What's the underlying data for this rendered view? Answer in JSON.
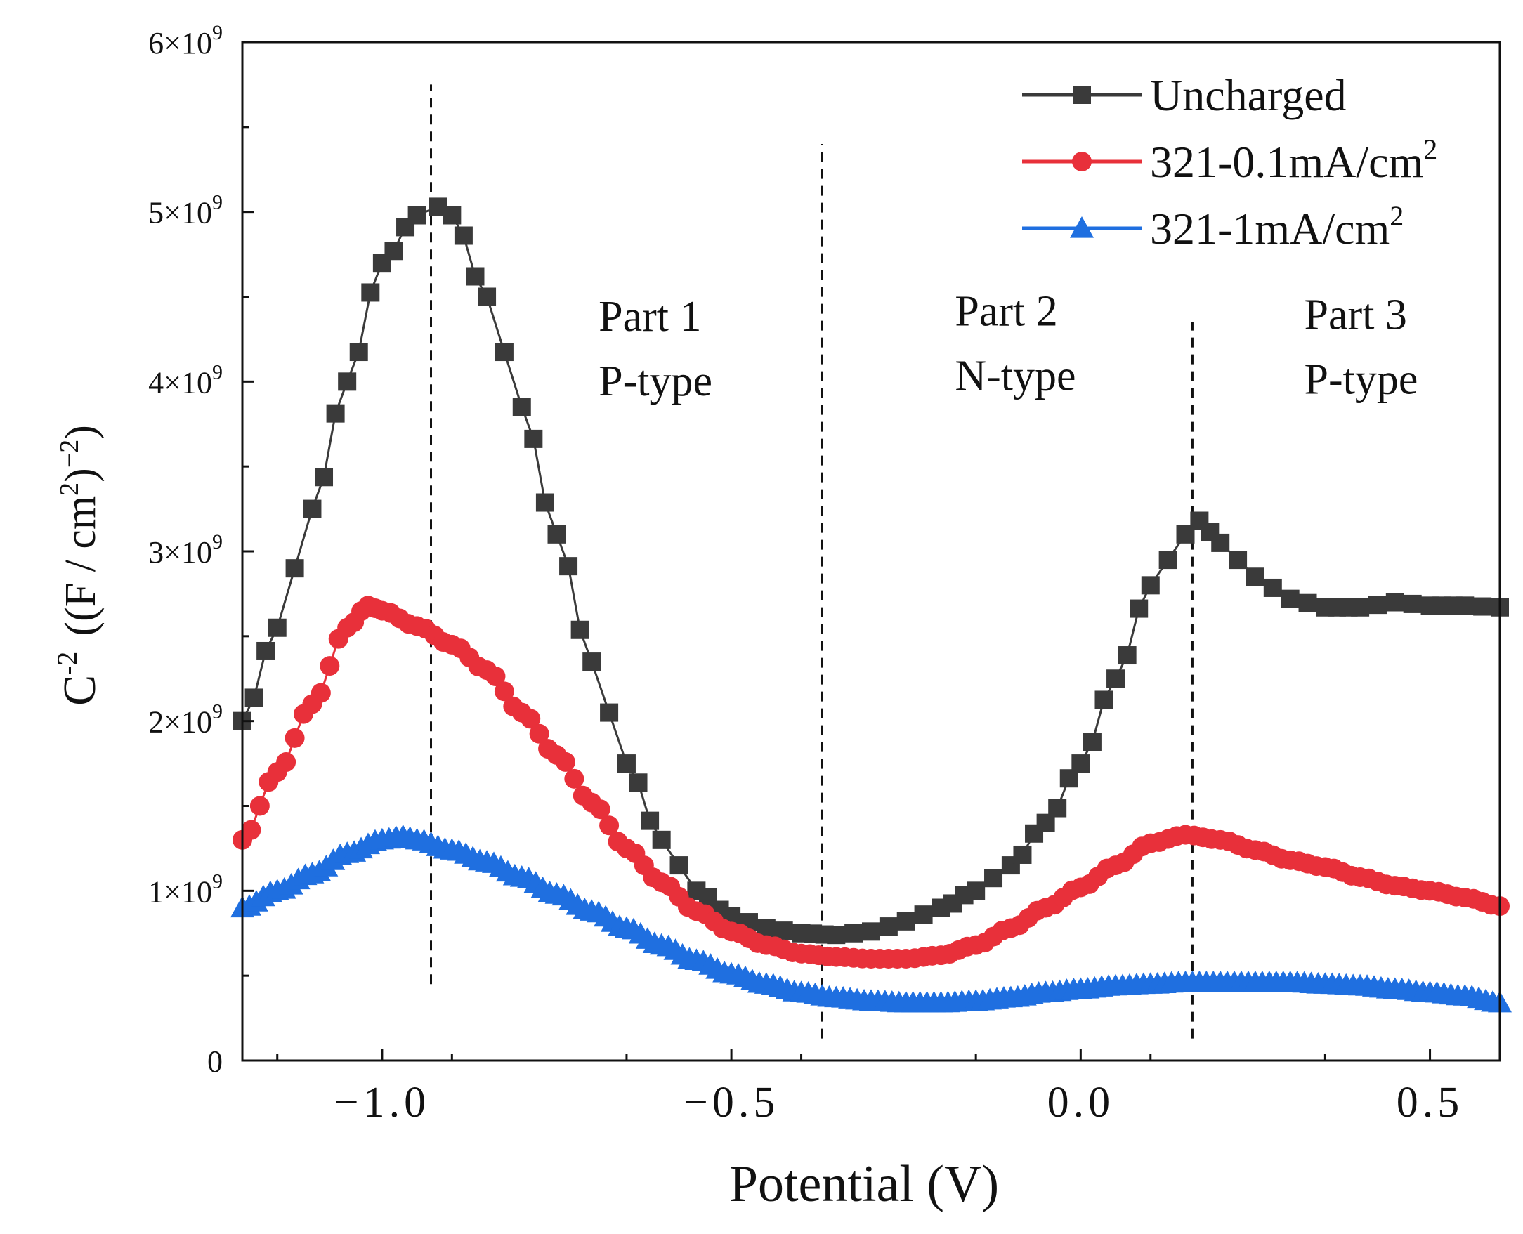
{
  "chart_data": {
    "type": "line",
    "xlabel": "Potential (V)",
    "ylabel": {
      "base": "C",
      "sup": "-2",
      "unit_open": "((F / cm",
      "unit_sup": "2",
      "unit_mid": ")",
      "unit_sup2": "−2",
      "unit_close": ")"
    },
    "xlim": [
      -1.2,
      0.6
    ],
    "ylim": [
      0,
      6000000000
    ],
    "x_ticks": [
      {
        "value": -1.0,
        "label": "−1.0"
      },
      {
        "value": -0.5,
        "label": "−0.5"
      },
      {
        "value": 0.0,
        "label": "0.0"
      },
      {
        "value": 0.5,
        "label": "0.5"
      }
    ],
    "y_ticks": [
      {
        "value": 0,
        "label": "0",
        "sup": ""
      },
      {
        "value": 1000000000,
        "label": "1×10",
        "sup": "9"
      },
      {
        "value": 2000000000,
        "label": "2×10",
        "sup": "9"
      },
      {
        "value": 3000000000,
        "label": "3×10",
        "sup": "9"
      },
      {
        "value": 4000000000,
        "label": "4×10",
        "sup": "9"
      },
      {
        "value": 5000000000,
        "label": "5×10",
        "sup": "9"
      },
      {
        "value": 6000000000,
        "label": "6×10",
        "sup": "9"
      }
    ],
    "legend_position": "top-right",
    "series": [
      {
        "name": "Uncharged",
        "name_sup": "",
        "color": "#3a3a3a",
        "marker": "square",
        "x": [
          -1.2,
          -1.15,
          -1.1,
          -1.05,
          -1.0,
          -0.95,
          -0.92,
          -0.9,
          -0.85,
          -0.8,
          -0.75,
          -0.7,
          -0.65,
          -0.6,
          -0.55,
          -0.5,
          -0.45,
          -0.4,
          -0.35,
          -0.3,
          -0.25,
          -0.2,
          -0.15,
          -0.1,
          -0.05,
          0.0,
          0.05,
          0.1,
          0.15,
          0.17,
          0.2,
          0.25,
          0.3,
          0.35,
          0.4,
          0.45,
          0.5,
          0.55,
          0.6
        ],
        "y": [
          2000000000,
          2550000000,
          3250000000,
          4000000000,
          4700000000,
          4980000000,
          5030000000,
          4980000000,
          4500000000,
          3850000000,
          3100000000,
          2350000000,
          1750000000,
          1300000000,
          1000000000,
          850000000,
          780000000,
          750000000,
          740000000,
          760000000,
          820000000,
          900000000,
          1000000000,
          1150000000,
          1400000000,
          1750000000,
          2250000000,
          2800000000,
          3100000000,
          3180000000,
          3050000000,
          2850000000,
          2720000000,
          2670000000,
          2670000000,
          2700000000,
          2680000000,
          2680000000,
          2670000000
        ]
      },
      {
        "name": "321-0.1mA/cm",
        "name_sup": "2",
        "color": "#e8303a",
        "marker": "circle",
        "x": [
          -1.2,
          -1.15,
          -1.1,
          -1.05,
          -1.02,
          -1.0,
          -0.95,
          -0.9,
          -0.85,
          -0.8,
          -0.75,
          -0.7,
          -0.65,
          -0.6,
          -0.55,
          -0.5,
          -0.45,
          -0.4,
          -0.35,
          -0.3,
          -0.25,
          -0.2,
          -0.15,
          -0.1,
          -0.05,
          0.0,
          0.05,
          0.1,
          0.15,
          0.2,
          0.25,
          0.3,
          0.35,
          0.4,
          0.45,
          0.5,
          0.55,
          0.6
        ],
        "y": [
          1300000000,
          1700000000,
          2100000000,
          2550000000,
          2680000000,
          2650000000,
          2560000000,
          2450000000,
          2300000000,
          2050000000,
          1800000000,
          1520000000,
          1250000000,
          1050000000,
          880000000,
          760000000,
          680000000,
          630000000,
          610000000,
          600000000,
          600000000,
          620000000,
          680000000,
          780000000,
          900000000,
          1020000000,
          1150000000,
          1280000000,
          1330000000,
          1300000000,
          1240000000,
          1180000000,
          1140000000,
          1080000000,
          1030000000,
          1000000000,
          960000000,
          910000000
        ]
      },
      {
        "name": "321-1mA/cm",
        "name_sup": "2",
        "color": "#1f6fe0",
        "marker": "triangle",
        "x": [
          -1.2,
          -1.15,
          -1.1,
          -1.05,
          -1.0,
          -0.97,
          -0.95,
          -0.9,
          -0.85,
          -0.8,
          -0.75,
          -0.7,
          -0.65,
          -0.6,
          -0.55,
          -0.5,
          -0.45,
          -0.4,
          -0.35,
          -0.3,
          -0.25,
          -0.2,
          -0.15,
          -0.1,
          -0.05,
          0.0,
          0.05,
          0.1,
          0.15,
          0.2,
          0.25,
          0.3,
          0.35,
          0.4,
          0.45,
          0.5,
          0.55,
          0.6
        ],
        "y": [
          900000000,
          1000000000,
          1100000000,
          1220000000,
          1300000000,
          1320000000,
          1300000000,
          1240000000,
          1170000000,
          1080000000,
          980000000,
          880000000,
          780000000,
          680000000,
          590000000,
          510000000,
          450000000,
          400000000,
          370000000,
          350000000,
          340000000,
          340000000,
          350000000,
          370000000,
          400000000,
          420000000,
          440000000,
          450000000,
          460000000,
          460000000,
          460000000,
          460000000,
          450000000,
          440000000,
          420000000,
          400000000,
          380000000,
          340000000
        ]
      }
    ],
    "reference_lines": [
      {
        "x": -0.93,
        "y_from": 450000000,
        "y_to": 5750000000
      },
      {
        "x": -0.37,
        "y_from": 130000000,
        "y_to": 5400000000
      },
      {
        "x": 0.16,
        "y_from": 130000000,
        "y_to": 4350000000
      }
    ],
    "annotations": [
      {
        "line1": "Part 1",
        "line2": "P-type",
        "x": -0.69,
        "y": 4300000000
      },
      {
        "line1": "Part 2",
        "line2": "N-type",
        "x": -0.18,
        "y": 4330000000
      },
      {
        "line1": "Part 3",
        "line2": "P-type",
        "x": 0.32,
        "y": 4310000000
      }
    ]
  }
}
